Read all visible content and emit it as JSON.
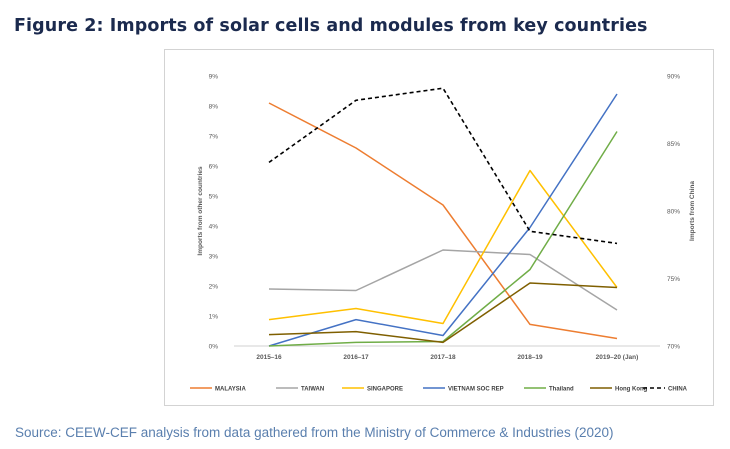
{
  "figure_title": "Figure 2: Imports of solar cells and modules from key countries",
  "source_note": "Source: CEEW-CEF analysis from data gathered from the Ministry of Commerce & Industries (2020)",
  "chart_data": {
    "type": "line",
    "categories": [
      "2015–16",
      "2016–17",
      "2017–18",
      "2018–19",
      "2019–20 (Jan)"
    ],
    "ylabel": "Imports from other countries",
    "y2label": "Imports from China",
    "ylim": [
      0,
      9
    ],
    "y2lim": [
      70,
      90
    ],
    "yticks": [
      {
        "value": 0,
        "label": "0%"
      },
      {
        "value": 1,
        "label": "1%"
      },
      {
        "value": 2,
        "label": "2%"
      },
      {
        "value": 3,
        "label": "3%"
      },
      {
        "value": 4,
        "label": "4%"
      },
      {
        "value": 5,
        "label": "5%"
      },
      {
        "value": 6,
        "label": "6%"
      },
      {
        "value": 7,
        "label": "7%"
      },
      {
        "value": 8,
        "label": "8%"
      },
      {
        "value": 9,
        "label": "9%"
      }
    ],
    "y2ticks": [
      {
        "value": 70,
        "label": "70%"
      },
      {
        "value": 75,
        "label": "75%"
      },
      {
        "value": 80,
        "label": "80%"
      },
      {
        "value": 85,
        "label": "85%"
      },
      {
        "value": 90,
        "label": "90%"
      }
    ],
    "grid": false,
    "legend_position": "bottom",
    "series": [
      {
        "name": "MALAYSIA",
        "axis": "left",
        "color": "#ed7d31",
        "dashed": false,
        "values": [
          8.1,
          6.6,
          4.7,
          0.72,
          0.25
        ]
      },
      {
        "name": "TAIWAN",
        "axis": "left",
        "color": "#a5a5a5",
        "dashed": false,
        "values": [
          1.9,
          1.85,
          3.2,
          3.05,
          1.2
        ]
      },
      {
        "name": "SINGAPORE",
        "axis": "left",
        "color": "#ffc000",
        "dashed": false,
        "values": [
          0.88,
          1.25,
          0.75,
          5.85,
          1.95
        ]
      },
      {
        "name": "VIETNAM SOC REP",
        "axis": "left",
        "color": "#4472c4",
        "dashed": false,
        "values": [
          0.0,
          0.88,
          0.35,
          3.95,
          8.4
        ]
      },
      {
        "name": "Thailand",
        "axis": "left",
        "color": "#70ad47",
        "dashed": false,
        "values": [
          0.0,
          0.12,
          0.15,
          2.55,
          7.15
        ]
      },
      {
        "name": "Hong Kong",
        "axis": "left",
        "color": "#7f5f00",
        "dashed": false,
        "values": [
          0.38,
          0.48,
          0.12,
          2.1,
          1.95
        ]
      },
      {
        "name": "CHINA",
        "axis": "right",
        "color": "#000000",
        "dashed": true,
        "values": [
          83.6,
          88.2,
          89.1,
          78.5,
          77.6
        ]
      }
    ]
  }
}
